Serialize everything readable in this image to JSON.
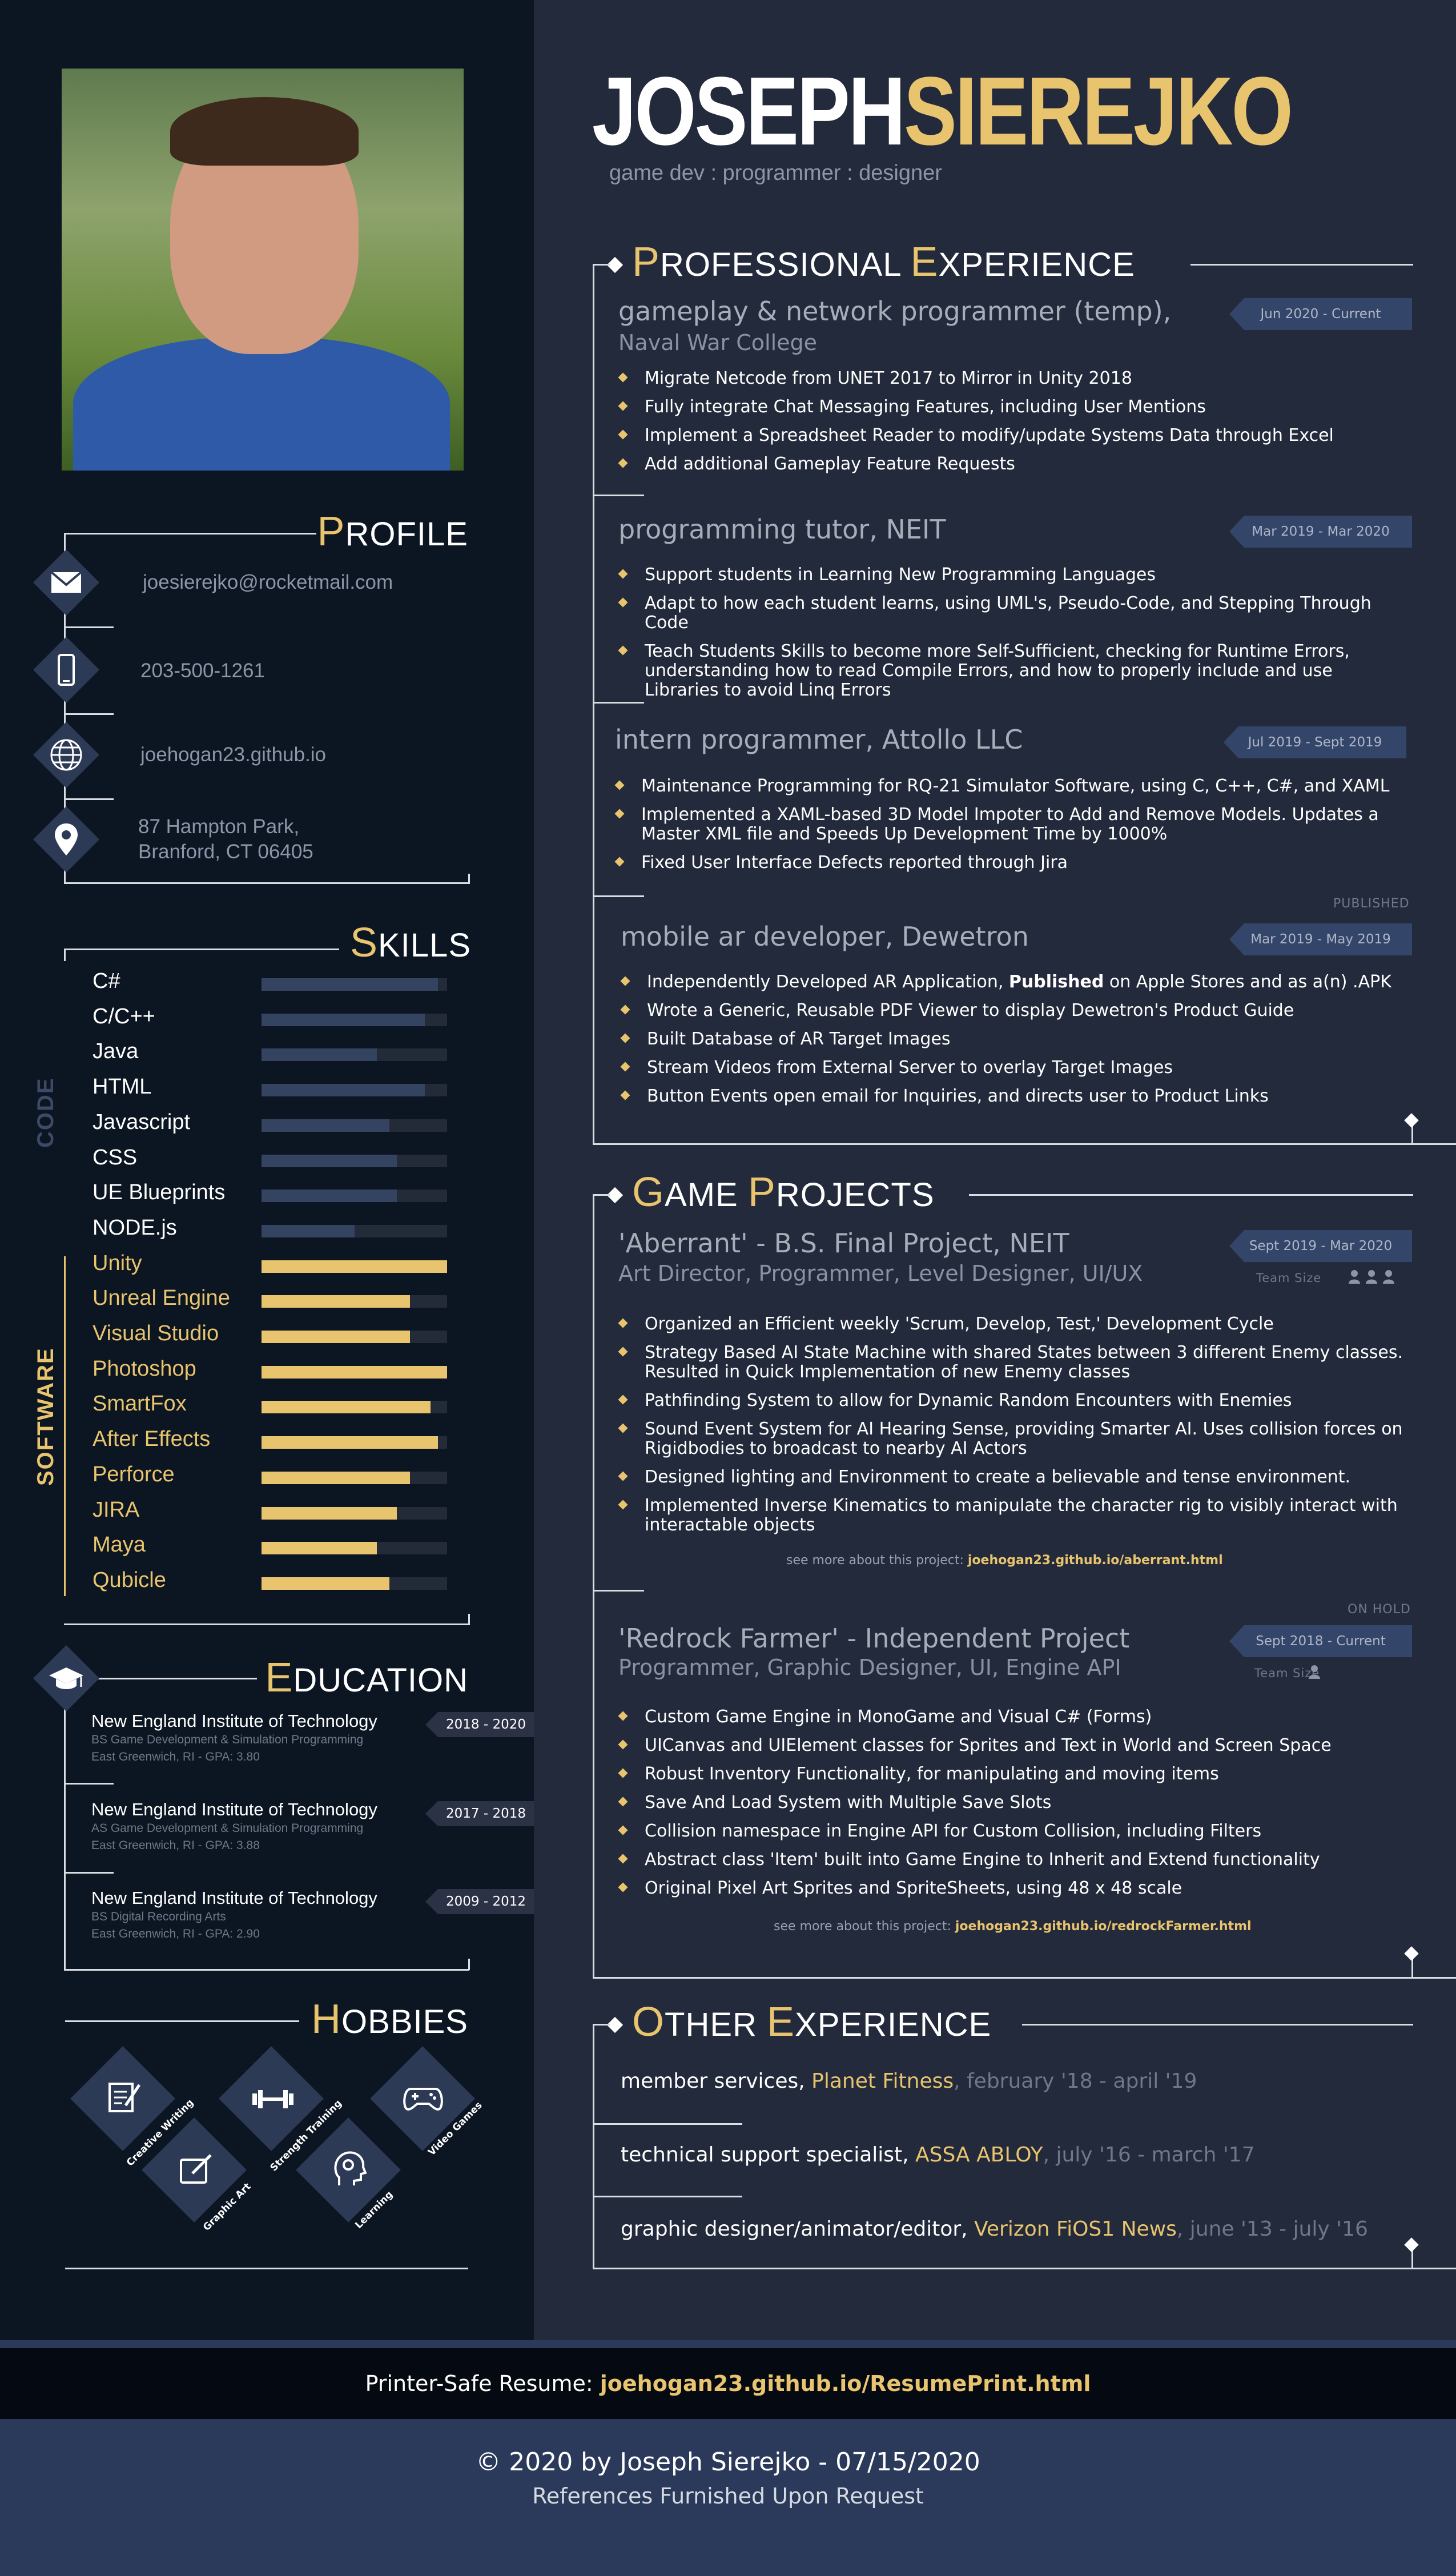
{
  "header": {
    "first_name": "JOSEPH",
    "last_name": "SIEREJKO",
    "tagline": "game dev : programmer : designer"
  },
  "sidebar": {
    "profile": {
      "title_cap": "P",
      "title_rest": "ROFILE",
      "email": "joesierejko@rocketmail.com",
      "phone": "203-500-1261",
      "website": "joehogan23.github.io",
      "address_line1": "87 Hampton Park,",
      "address_line2": "Branford, CT 06405"
    },
    "skills": {
      "title_cap": "S",
      "title_rest": "KILLS",
      "code_label": "CODE",
      "software_label": "SOFTWARE",
      "code": [
        {
          "name": "C#",
          "level": 0.95
        },
        {
          "name": "C/C++",
          "level": 0.88
        },
        {
          "name": "Java",
          "level": 0.62
        },
        {
          "name": "HTML",
          "level": 0.88
        },
        {
          "name": "Javascript",
          "level": 0.69
        },
        {
          "name": "CSS",
          "level": 0.73
        },
        {
          "name": "UE Blueprints",
          "level": 0.73
        },
        {
          "name": "NODE.js",
          "level": 0.5
        }
      ],
      "software": [
        {
          "name": "Unity",
          "level": 1.0
        },
        {
          "name": "Unreal Engine",
          "level": 0.8
        },
        {
          "name": "Visual Studio",
          "level": 0.8
        },
        {
          "name": "Photoshop",
          "level": 1.0
        },
        {
          "name": "SmartFox",
          "level": 0.91
        },
        {
          "name": "After Effects",
          "level": 0.95
        },
        {
          "name": "Perforce",
          "level": 0.8
        },
        {
          "name": "JIRA",
          "level": 0.73
        },
        {
          "name": "Maya",
          "level": 0.62
        },
        {
          "name": "Qubicle",
          "level": 0.69
        }
      ]
    },
    "education": {
      "title_cap": "E",
      "title_rest": "DUCATION",
      "items": [
        {
          "school": "New England Institute of Technology",
          "degree": "BS Game Development & Simulation Programming",
          "location": "East Greenwich, RI - GPA: 3.80",
          "years": "2018 - 2020"
        },
        {
          "school": "New England Institute of Technology",
          "degree": "AS Game Development & Simulation Programming",
          "location": "East Greenwich, RI - GPA: 3.88",
          "years": "2017 - 2018"
        },
        {
          "school": "New England Institute of Technology",
          "degree": "BS Digital Recording Arts",
          "location": "East Greenwich, RI - GPA: 2.90",
          "years": "2009 - 2012"
        }
      ]
    },
    "hobbies": {
      "title_cap": "H",
      "title_rest": "OBBIES",
      "items": [
        "Creative Writing",
        "Graphic Art",
        "Strength Training",
        "Learning",
        "Video Games"
      ]
    }
  },
  "experience": {
    "title_cap1": "P",
    "title_rest1": "ROFESSIONAL ",
    "title_cap2": "E",
    "title_rest2": "XPERIENCE",
    "published_label": "PUBLISHED",
    "jobs": [
      {
        "title": "gameplay & network programmer (temp),",
        "org": "Naval War College",
        "dates": "Jun 2020 - Current",
        "bullets": [
          "Migrate Netcode from UNET 2017 to Mirror in Unity 2018",
          "Fully integrate Chat Messaging Features, including User Mentions",
          "Implement a Spreadsheet Reader to modify/update Systems Data through Excel",
          "Add additional Gameplay Feature Requests"
        ]
      },
      {
        "title": "programming tutor, NEIT",
        "dates": "Mar 2019 - Mar 2020",
        "bullets": [
          "Support students in Learning New Programming Languages",
          "Adapt to how each student learns, using UML's, Pseudo-Code, and Stepping Through Code",
          "Teach Students Skills to become more Self-Sufficient, checking for Runtime Errors, understanding how to read Compile Errors, and how to properly include and use Libraries to avoid Linq Errors"
        ]
      },
      {
        "title": "intern programmer, Attollo LLC",
        "dates": "Jul 2019 - Sept 2019",
        "bullets": [
          "Maintenance Programming for RQ-21 Simulator Software, using C, C++, C#, and XAML",
          "Implemented a XAML-based 3D Model Impoter to Add and Remove Models. Updates a Master XML file and Speeds Up Development Time by 1000%",
          "Fixed User Interface Defects reported through Jira"
        ]
      },
      {
        "title": "mobile ar developer, Dewetron",
        "dates": "Mar 2019 - May 2019",
        "bullet1_pre": "Independently Developed AR Application, ",
        "bullet1_bold": "Published",
        "bullet1_post": " on Apple Stores and as a(n) .APK",
        "bullets": [
          "Wrote a Generic, Reusable PDF Viewer to display Dewetron's Product Guide",
          "Built Database of AR Target Images",
          "Stream Videos from External Server to overlay Target Images",
          "Button Events open email for Inquiries, and directs user to Product Links"
        ]
      }
    ]
  },
  "projects": {
    "title_cap1": "G",
    "title_rest1": "AME ",
    "title_cap2": "P",
    "title_rest2": "ROJECTS",
    "team_size_label": "Team Size",
    "see_more_label": "see more about this project: ",
    "on_hold_label": "ON HOLD",
    "items": [
      {
        "title": "'Aberrant' - B.S. Final Project, NEIT",
        "roles": "Art Director, Programmer, Level Designer, UI/UX",
        "dates": "Sept 2019 - Mar 2020",
        "team_size": 3,
        "link": "joehogan23.github.io/aberrant.html",
        "bullets": [
          "Organized an Efficient weekly 'Scrum, Develop, Test,' Development Cycle",
          "Strategy Based AI State Machine with shared States between 3 different  Enemy classes. Resulted in Quick Implementation of new Enemy classes",
          "Pathfinding System to allow for Dynamic Random Encounters with Enemies",
          "Sound Event System for AI Hearing Sense, providing Smarter AI. Uses collision forces on Rigidbodies to broadcast to nearby AI Actors",
          "Designed lighting and Environment to create a believable and tense environment.",
          "Implemented Inverse Kinematics to manipulate the character rig to visibly interact with interactable objects"
        ]
      },
      {
        "title": "'Redrock Farmer' - Independent Project",
        "roles": "Programmer, Graphic Designer, UI, Engine API",
        "dates": "Sept 2018 - Current",
        "team_size": 1,
        "link": "joehogan23.github.io/redrockFarmer.html",
        "bullets": [
          "Custom Game Engine  in MonoGame  and Visual C# (Forms)",
          "UICanvas and UIElement classes for Sprites and Text in World and Screen Space",
          "Robust Inventory Functionality, for manipulating and moving items",
          "Save And Load System with Multiple Save Slots",
          "Collision namespace in Engine API for Custom Collision, including Filters",
          "Abstract class 'Item' built into Game Engine to Inherit and Extend functionality",
          "Original Pixel Art Sprites and SpriteSheets, using 48 x 48 scale"
        ]
      }
    ]
  },
  "other": {
    "title_cap1": "O",
    "title_rest1": "THER ",
    "title_cap2": "E",
    "title_rest2": "XPERIENCE",
    "items": [
      {
        "role": "member services, ",
        "company": "Planet Fitness",
        "dates": ", february '18 - april '19"
      },
      {
        "role": "technical support specialist, ",
        "company": "ASSA ABLOY",
        "dates": ", july '16 - march '17"
      },
      {
        "role": "graphic designer/animator/editor, ",
        "company": "Verizon FiOS1 News",
        "dates": ", june '13 - july '16"
      }
    ]
  },
  "footer": {
    "printer_label": "Printer-Safe Resume: ",
    "printer_link": "joehogan23.github.io/ResumePrint.html",
    "copyright": "© 2020 by Joseph Sierejko - 07/15/2020",
    "references": "References Furnished Upon Request"
  },
  "colors": {
    "accent": "#e8c46f",
    "sidebar_bg": "#0c1522",
    "main_bg": "#232a3b",
    "footer_bg": "#2b3a5a"
  }
}
